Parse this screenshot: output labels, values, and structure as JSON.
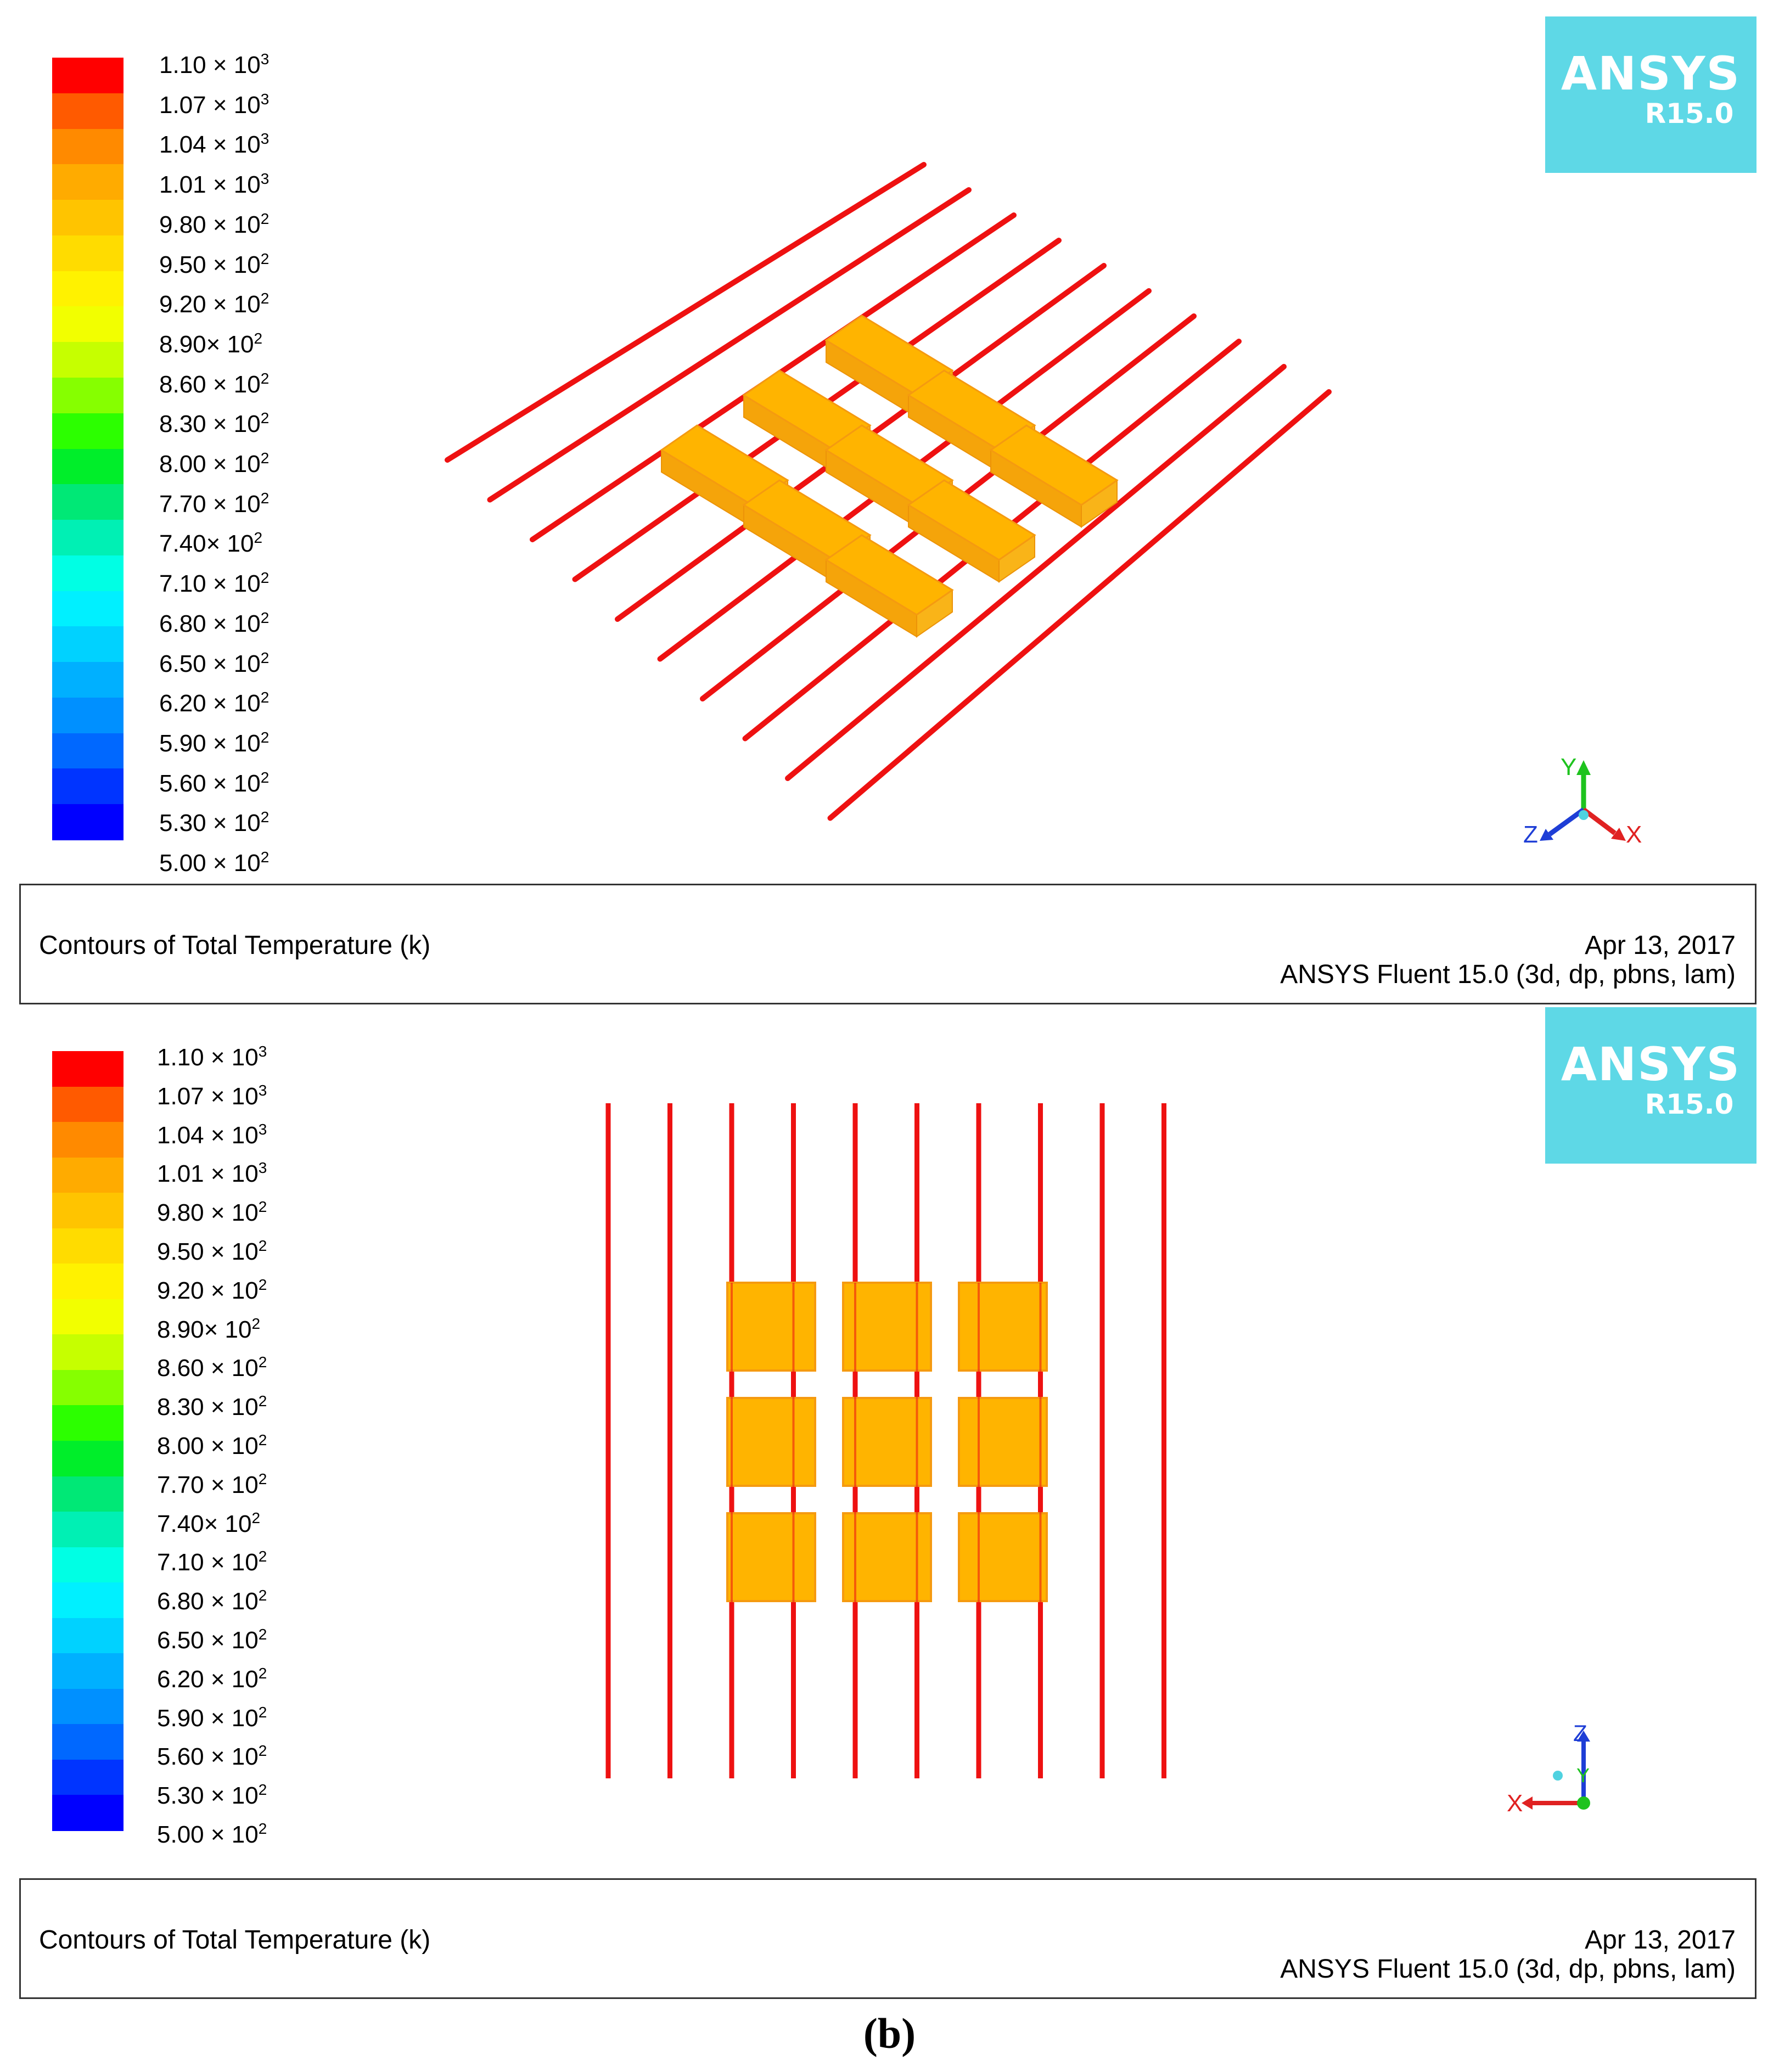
{
  "colorbar": {
    "colors": [
      "#ff0000",
      "#ff5a00",
      "#ff8a00",
      "#ffab00",
      "#ffc400",
      "#ffdc00",
      "#fff200",
      "#f2ff00",
      "#c6ff00",
      "#86ff00",
      "#2cff00",
      "#00ee2a",
      "#00e876",
      "#00f0b4",
      "#00ffe4",
      "#00f0ff",
      "#00d2ff",
      "#00b0ff",
      "#0090ff",
      "#0068ff",
      "#0034ff",
      "#0000ff"
    ],
    "labels": [
      {
        "mant": "1.10 × 10",
        "exp": "3"
      },
      {
        "mant": "1.07 × 10",
        "exp": "3"
      },
      {
        "mant": "1.04 × 10",
        "exp": "3"
      },
      {
        "mant": "1.01 × 10",
        "exp": "3"
      },
      {
        "mant": "9.80 × 10",
        "exp": "2"
      },
      {
        "mant": "9.50 × 10",
        "exp": "2"
      },
      {
        "mant": "9.20 × 10",
        "exp": "2"
      },
      {
        "mant": "8.90× 10",
        "exp": "2"
      },
      {
        "mant": "8.60 × 10",
        "exp": "2"
      },
      {
        "mant": "8.30 × 10",
        "exp": "2"
      },
      {
        "mant": "8.00 × 10",
        "exp": "2"
      },
      {
        "mant": "7.70 × 10",
        "exp": "2"
      },
      {
        "mant": "7.40× 10",
        "exp": "2"
      },
      {
        "mant": "7.10 × 10",
        "exp": "2"
      },
      {
        "mant": "6.80 × 10",
        "exp": "2"
      },
      {
        "mant": "6.50 × 10",
        "exp": "2"
      },
      {
        "mant": "6.20 × 10",
        "exp": "2"
      },
      {
        "mant": "5.90 × 10",
        "exp": "2"
      },
      {
        "mant": "5.60 × 10",
        "exp": "2"
      },
      {
        "mant": "5.30 × 10",
        "exp": "2"
      },
      {
        "mant": "5.00 × 10",
        "exp": "2"
      }
    ]
  },
  "logo": {
    "brand": "ANSYS",
    "version": "R15.0"
  },
  "panel_a": {
    "title": "Contours of Total Temperature (k)",
    "date": "Apr 13, 2017",
    "version": "ANSYS Fluent 15.0 (3d, dp, pbns, lam)",
    "axes": {
      "y": "Y",
      "z": "Z",
      "x": "X"
    }
  },
  "panel_b": {
    "title": "Contours of Total Temperature (k)",
    "date": "Apr 13, 2017",
    "version": "ANSYS Fluent 15.0 (3d, dp, pbns, lam)",
    "axes": {
      "z": "Z",
      "y": "Y",
      "x": "X"
    }
  },
  "caption": "(b)",
  "colors": {
    "heater": "#ee1111",
    "block_fill": "#ffb400",
    "block_edge": "#f59a10",
    "logo_bg": "#5ed8e6"
  }
}
